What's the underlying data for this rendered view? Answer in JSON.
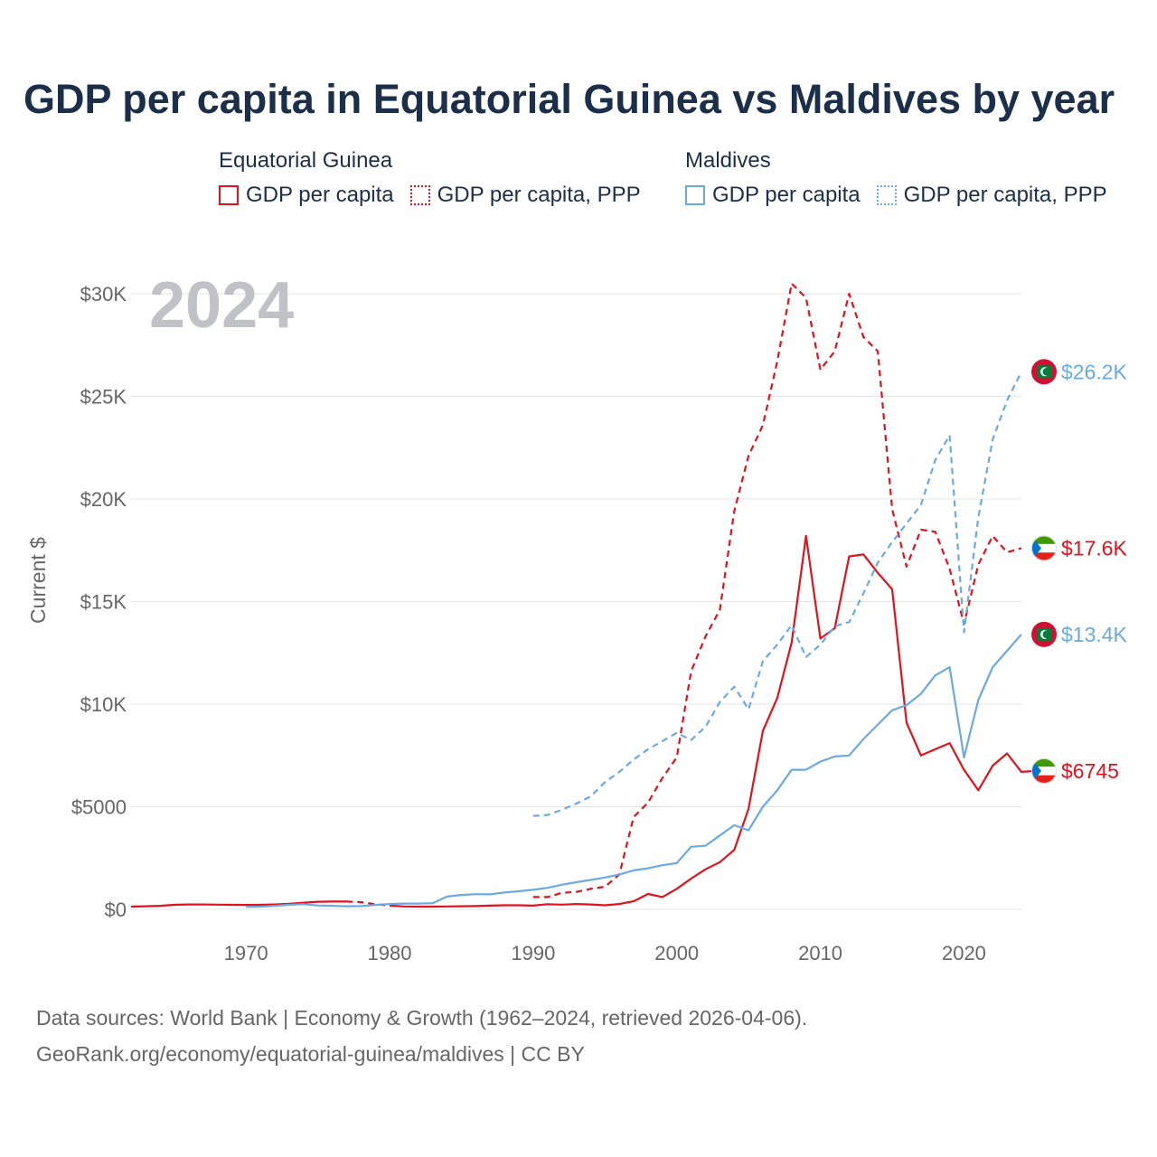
{
  "header": {
    "title": "GDP per capita in Equatorial Guinea vs Maldives by year"
  },
  "legend": {
    "groups": [
      {
        "name": "Equatorial Guinea",
        "items": [
          {
            "label": "GDP per capita"
          },
          {
            "label": "GDP per capita, PPP"
          }
        ]
      },
      {
        "name": "Maldives",
        "items": [
          {
            "label": "GDP per capita"
          },
          {
            "label": "GDP per capita, PPP"
          }
        ]
      }
    ]
  },
  "colors": {
    "eq": "#e3111b",
    "mv": "#6aaae4",
    "grid": "#e5e5e5",
    "tick": "#666666",
    "year": "#c0c2c8",
    "title": "#1b2f4b"
  },
  "footer": {
    "line1": "Data sources: World Bank | Economy & Growth (1962–2024, retrieved 2026-04-06).",
    "line2": "GeoRank.org/economy/equatorial-guinea/maldives | CC BY"
  },
  "chart_data": {
    "type": "line",
    "title": "GDP per capita in Equatorial Guinea vs Maldives by year",
    "year_label": "2024",
    "xlabel": "",
    "ylabel": "Current $",
    "xlim": [
      1962,
      2024
    ],
    "ylim": [
      0,
      30000
    ],
    "xticks": [
      1970,
      1980,
      1990,
      2000,
      2010,
      2020
    ],
    "xtick_labels": [
      "1970",
      "1980",
      "1990",
      "2000",
      "2010",
      "2020"
    ],
    "yticks": [
      0,
      5000,
      10000,
      15000,
      20000,
      25000,
      30000
    ],
    "ytick_labels": [
      "$0",
      "$5000",
      "$10K",
      "$15K",
      "$20K",
      "$25K",
      "$30K"
    ],
    "series": [
      {
        "name": "Equatorial Guinea — GDP per capita",
        "country": "Equatorial Guinea",
        "measure": "GDP per capita",
        "style": "solid",
        "color": "#e3111b",
        "end_label": "$6745",
        "x": [
          1962,
          1963,
          1964,
          1965,
          1966,
          1967,
          1968,
          1969,
          1970,
          1971,
          1972,
          1973,
          1974,
          1975,
          1976,
          1977,
          1978,
          1979,
          1980,
          1981,
          1982,
          1983,
          1984,
          1985,
          1986,
          1987,
          1988,
          1989,
          1990,
          1991,
          1992,
          1993,
          1994,
          1995,
          1996,
          1997,
          1998,
          1999,
          2000,
          2001,
          2002,
          2003,
          2004,
          2005,
          2006,
          2007,
          2008,
          2009,
          2010,
          2011,
          2012,
          2013,
          2014,
          2015,
          2016,
          2017,
          2018,
          2019,
          2020,
          2021,
          2022,
          2023,
          2024
        ],
        "segments": [
          [
            1962,
            1977,
            130,
            150,
            170,
            220,
            240,
            240,
            230,
            220,
            215,
            220,
            240,
            270,
            320,
            370,
            380,
            380
          ],
          [
            1980,
            2024,
            180,
            140,
            130,
            130,
            140,
            150,
            160,
            180,
            200,
            200,
            180,
            250,
            230,
            260,
            240,
            200,
            260,
            390,
            750,
            600,
            1000,
            1500,
            1950,
            2300,
            2900,
            4900,
            8700,
            10300,
            13000,
            18200,
            13200,
            13700,
            17200,
            17300,
            16400,
            15600,
            9100,
            7500,
            7800,
            8100,
            6800,
            5800,
            7000,
            7600,
            6700,
            6745
          ]
        ]
      },
      {
        "name": "Equatorial Guinea — GDP per capita, PPP",
        "country": "Equatorial Guinea",
        "measure": "GDP per capita, PPP",
        "style": "dashed",
        "color": "#e3111b",
        "end_label": "$17.6K",
        "segments": [
          [
            1977,
            1980,
            380,
            350,
            250,
            180
          ],
          [
            1990,
            2024,
            600,
            600,
            800,
            850,
            1000,
            1100,
            1700,
            4500,
            5200,
            6400,
            7400,
            11600,
            13300,
            14600,
            19400,
            22100,
            23600,
            26700,
            30500,
            29800,
            26300,
            27200,
            30000,
            27900,
            27200,
            19500,
            16700,
            18500,
            18400,
            16600,
            13900,
            16800,
            18200,
            17400,
            17600
          ]
        ]
      },
      {
        "name": "Maldives — GDP per capita",
        "country": "Maldives",
        "measure": "GDP per capita",
        "style": "solid",
        "color": "#6aaae4",
        "end_label": "$13.4K",
        "segments": [
          [
            1970,
            2024,
            120,
            130,
            170,
            220,
            250,
            190,
            170,
            150,
            160,
            210,
            260,
            280,
            280,
            300,
            620,
            700,
            740,
            730,
            820,
            880,
            950,
            1050,
            1200,
            1320,
            1430,
            1550,
            1700,
            1900,
            2000,
            2150,
            2250,
            3050,
            3100,
            3600,
            4100,
            3850,
            5000,
            5800,
            6800,
            6800,
            7200,
            7450,
            7500,
            8300,
            9000,
            9700,
            9950,
            10500,
            11400,
            11800,
            7400,
            10200,
            11800,
            12600,
            13400
          ]
        ]
      },
      {
        "name": "Maldives — GDP per capita, PPP",
        "country": "Maldives",
        "measure": "GDP per capita, PPP",
        "style": "dashed",
        "color": "#6aaae4",
        "end_label": "$26.2K",
        "segments": [
          [
            1990,
            2024,
            4550,
            4600,
            4850,
            5150,
            5500,
            6200,
            6700,
            7300,
            7800,
            8200,
            8600,
            8250,
            8900,
            10100,
            10850,
            9750,
            12100,
            12900,
            13850,
            12300,
            12900,
            13800,
            14000,
            15400,
            16900,
            17900,
            18800,
            19700,
            21900,
            23100,
            13500,
            19100,
            22900,
            24800,
            26200
          ]
        ]
      }
    ]
  }
}
